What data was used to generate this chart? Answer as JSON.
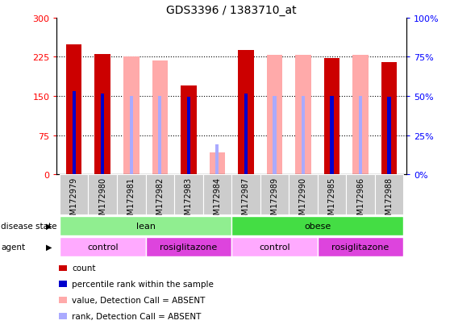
{
  "title": "GDS3396 / 1383710_at",
  "samples": [
    "GSM172979",
    "GSM172980",
    "GSM172981",
    "GSM172982",
    "GSM172983",
    "GSM172984",
    "GSM172987",
    "GSM172989",
    "GSM172990",
    "GSM172985",
    "GSM172986",
    "GSM172988"
  ],
  "count_values": [
    248,
    230,
    null,
    null,
    170,
    null,
    238,
    null,
    null,
    222,
    null,
    215
  ],
  "count_absent_values": [
    null,
    null,
    225,
    218,
    null,
    42,
    null,
    228,
    228,
    null,
    228,
    null
  ],
  "rank_values": [
    160,
    155,
    null,
    null,
    148,
    null,
    155,
    null,
    null,
    150,
    null,
    148
  ],
  "rank_absent_values": [
    null,
    null,
    150,
    150,
    null,
    58,
    null,
    150,
    150,
    null,
    150,
    null
  ],
  "ylim": [
    0,
    300
  ],
  "yticks": [
    0,
    75,
    150,
    225,
    300
  ],
  "ytick_labels": [
    "0",
    "75",
    "150",
    "225",
    "300"
  ],
  "y2tick_labels": [
    "0%",
    "25%",
    "50%",
    "75%",
    "100%"
  ],
  "disease_state_groups": [
    {
      "label": "lean",
      "start": 0,
      "end": 6,
      "color": "#90ee90"
    },
    {
      "label": "obese",
      "start": 6,
      "end": 12,
      "color": "#44dd44"
    }
  ],
  "agent_groups": [
    {
      "label": "control",
      "start": 0,
      "end": 3,
      "color": "#ffaaff"
    },
    {
      "label": "rosiglitazone",
      "start": 3,
      "end": 6,
      "color": "#dd44dd"
    },
    {
      "label": "control",
      "start": 6,
      "end": 9,
      "color": "#ffaaff"
    },
    {
      "label": "rosiglitazone",
      "start": 9,
      "end": 12,
      "color": "#dd44dd"
    }
  ],
  "bar_color_present": "#cc0000",
  "bar_color_absent": "#ffaaaa",
  "rank_color_present": "#0000cc",
  "rank_color_absent": "#aaaaff",
  "bar_width": 0.55,
  "rank_bar_width": 0.12,
  "legend_items": [
    {
      "color": "#cc0000",
      "label": "count"
    },
    {
      "color": "#0000cc",
      "label": "percentile rank within the sample"
    },
    {
      "color": "#ffaaaa",
      "label": "value, Detection Call = ABSENT"
    },
    {
      "color": "#aaaaff",
      "label": "rank, Detection Call = ABSENT"
    }
  ],
  "background_color": "#ffffff",
  "xtick_bg_color": "#cccccc",
  "plot_bg_color": "#ffffff"
}
